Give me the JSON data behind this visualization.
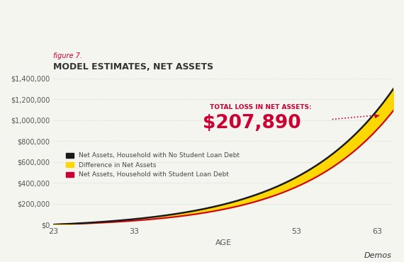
{
  "figure_label": "figure 7.",
  "title": "MODEL ESTIMATES, NET ASSETS",
  "xlabel": "AGE",
  "ylabel": "",
  "background_color": "#f5f5f0",
  "grid_color": "#cccccc",
  "age_min": 23,
  "age_max": 65,
  "ylim": [
    0,
    1400000
  ],
  "yticks": [
    0,
    200000,
    400000,
    600000,
    800000,
    1000000,
    1200000,
    1400000
  ],
  "xticks": [
    23,
    33,
    53,
    63
  ],
  "no_debt_color": "#1a1a1a",
  "student_debt_color": "#cc0033",
  "diff_color": "#FFD700",
  "annotation_text_label": "TOTAL LOSS IN NET ASSETS:",
  "annotation_value": "$207,890",
  "annotation_color": "#cc0033",
  "dotted_line_color": "#cc0033",
  "arrow_color": "#cc0033",
  "legend_items": [
    {
      "label": "Net Assets, Household with No Student Loan Debt",
      "color": "#1a1a1a"
    },
    {
      "label": "Difference in Net Assets",
      "color": "#FFD700"
    },
    {
      "label": "Net Assets, Household with Student Loan Debt",
      "color": "#cc0033"
    }
  ],
  "watermark": "Demos"
}
